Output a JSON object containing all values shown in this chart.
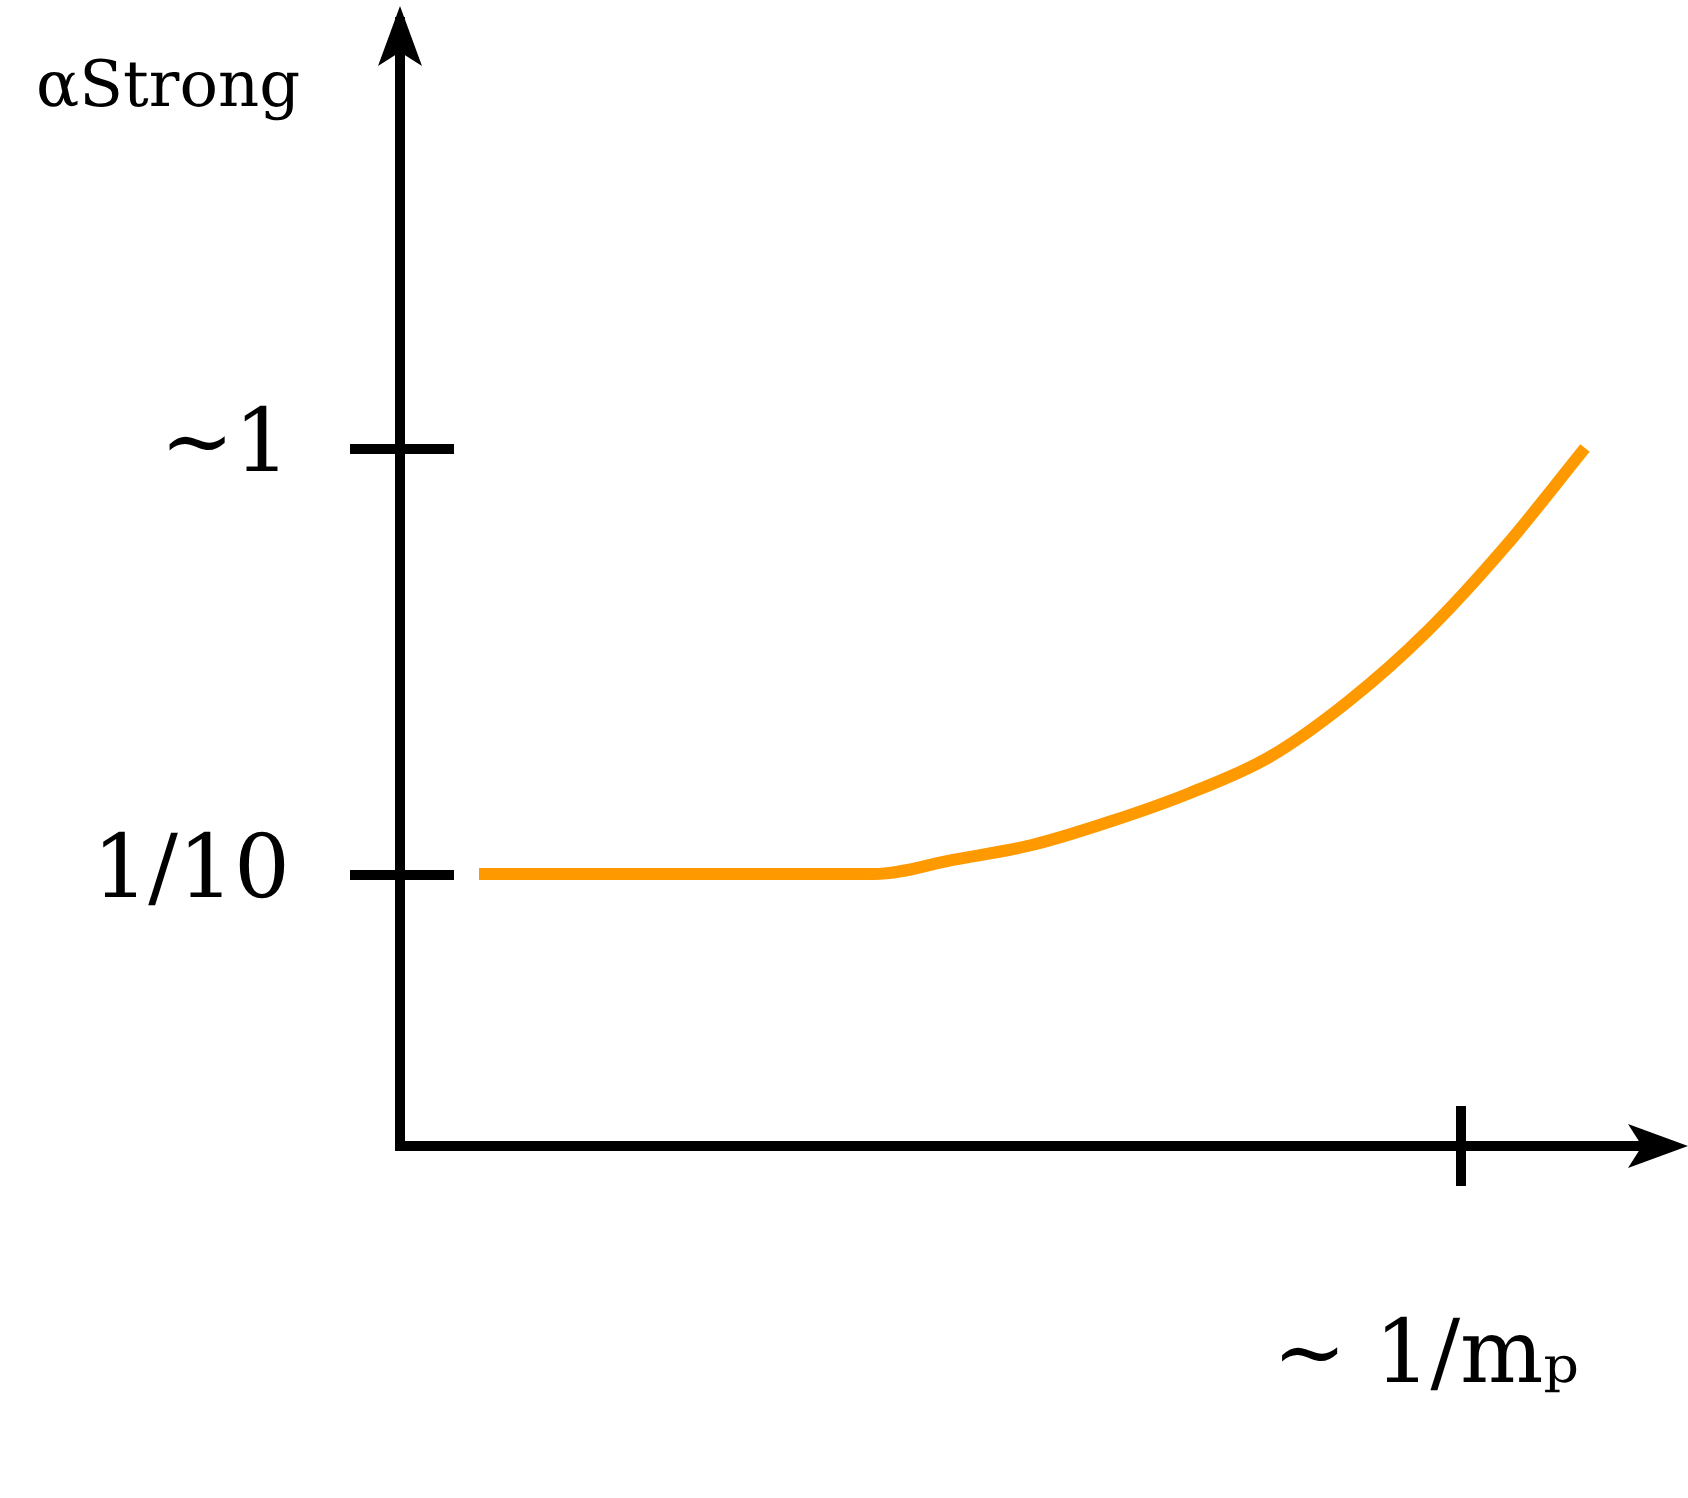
{
  "chart_data": {
    "type": "line",
    "ylabel": "αStrong",
    "categories": [
      null,
      null,
      null,
      null,
      null,
      null,
      null,
      null,
      null,
      null,
      null,
      null,
      null,
      null,
      null,
      null,
      null
    ],
    "series": [
      {
        "color": "#ff9900",
        "values": [
          null,
          0.1,
          0.1,
          0.1,
          0.1,
          0.1,
          0.1,
          0.108,
          0.117,
          0.133,
          0.155,
          0.188,
          0.254,
          0.371,
          0.59,
          1.0,
          null
        ]
      }
    ],
    "ylim": [
      0.023,
      10
    ],
    "yticks": [
      {
        "value": 1,
        "label": "∼1"
      },
      {
        "value": 0.1,
        "label": "1/10"
      }
    ],
    "annotations": [
      "∼ 1/mₚ"
    ],
    "log": "y",
    "marker": "none",
    "line_style": "solid"
  }
}
